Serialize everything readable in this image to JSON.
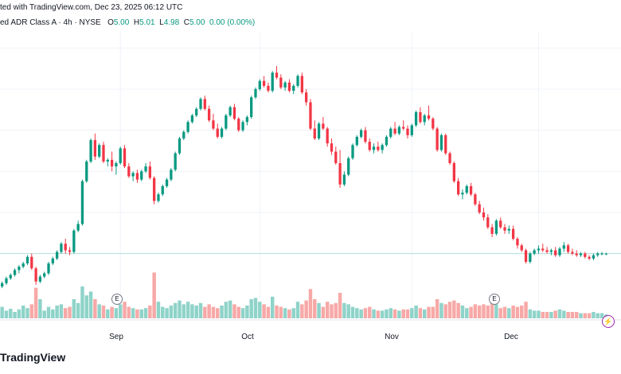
{
  "header": {
    "published": "ted with TradingView.com, Dec 23, 2025 06:12 UTC",
    "symbol": "ed ADR Class A · 4h · NYSE",
    "o_label": "O",
    "o_value": "5.00",
    "h_label": "H",
    "h_value": "5.01",
    "l_label": "L",
    "l_value": "4.98",
    "c_label": "C",
    "c_value": "5.00",
    "change": "0.00 (0.00%)"
  },
  "colors": {
    "up": "#089981",
    "down": "#f23645",
    "vol_up": "#8fd3c9",
    "vol_down": "#f7a9a7",
    "grid": "#f0f3fa",
    "last_price_line": "#b2dfdb"
  },
  "brand": "TradingView",
  "event_badges": {
    "sep": "E",
    "dec": "E"
  },
  "flash_icon": "lightning-icon",
  "chart_data": {
    "type": "candlestick",
    "timeframe": "4h",
    "exchange": "NYSE",
    "x_labels": [
      "Sep",
      "Oct",
      "Nov",
      "Dec"
    ],
    "x_label_candle_index": [
      28,
      61,
      97,
      127
    ],
    "last_price": 5.0,
    "ylim": [
      4.6,
      7.6
    ],
    "price_grid": [
      5.0,
      5.5,
      6.0,
      6.5,
      7.0,
      7.5
    ],
    "candles": [
      [
        4.6,
        4.66,
        4.58,
        4.64
      ],
      [
        4.64,
        4.72,
        4.62,
        4.7
      ],
      [
        4.7,
        4.76,
        4.68,
        4.74
      ],
      [
        4.74,
        4.82,
        4.72,
        4.8
      ],
      [
        4.8,
        4.86,
        4.76,
        4.84
      ],
      [
        4.84,
        4.9,
        4.82,
        4.88
      ],
      [
        4.88,
        4.98,
        4.86,
        4.96
      ],
      [
        4.96,
        5.0,
        4.8,
        4.82
      ],
      [
        4.82,
        4.84,
        4.62,
        4.66
      ],
      [
        4.66,
        4.74,
        4.64,
        4.72
      ],
      [
        4.72,
        4.78,
        4.7,
        4.76
      ],
      [
        4.76,
        4.9,
        4.74,
        4.88
      ],
      [
        4.88,
        4.96,
        4.86,
        4.94
      ],
      [
        4.94,
        5.04,
        4.92,
        5.02
      ],
      [
        5.02,
        5.14,
        5.0,
        5.12
      ],
      [
        5.12,
        5.18,
        5.0,
        5.04
      ],
      [
        5.04,
        5.08,
        4.98,
        5.02
      ],
      [
        5.02,
        5.3,
        5.0,
        5.28
      ],
      [
        5.28,
        5.4,
        5.26,
        5.36
      ],
      [
        5.36,
        5.9,
        5.34,
        5.88
      ],
      [
        5.88,
        6.14,
        5.86,
        6.12
      ],
      [
        6.12,
        6.4,
        6.1,
        6.38
      ],
      [
        6.38,
        6.46,
        6.14,
        6.18
      ],
      [
        6.18,
        6.34,
        6.16,
        6.32
      ],
      [
        6.32,
        6.36,
        6.1,
        6.12
      ],
      [
        6.12,
        6.16,
        6.06,
        6.14
      ],
      [
        6.14,
        6.24,
        6.0,
        6.06
      ],
      [
        6.06,
        6.12,
        5.96,
        6.1
      ],
      [
        6.1,
        6.3,
        6.08,
        6.28
      ],
      [
        6.28,
        6.32,
        6.04,
        6.06
      ],
      [
        6.06,
        6.1,
        5.92,
        5.94
      ],
      [
        5.94,
        6.0,
        5.88,
        5.98
      ],
      [
        5.98,
        6.02,
        5.86,
        5.9
      ],
      [
        5.9,
        6.02,
        5.88,
        6.0
      ],
      [
        6.0,
        6.1,
        5.98,
        6.06
      ],
      [
        6.06,
        6.12,
        5.9,
        5.92
      ],
      [
        5.92,
        5.94,
        5.6,
        5.64
      ],
      [
        5.64,
        5.74,
        5.62,
        5.72
      ],
      [
        5.72,
        5.84,
        5.7,
        5.82
      ],
      [
        5.82,
        5.92,
        5.8,
        5.9
      ],
      [
        5.9,
        6.04,
        5.88,
        6.02
      ],
      [
        6.02,
        6.24,
        6.0,
        6.22
      ],
      [
        6.22,
        6.42,
        6.2,
        6.4
      ],
      [
        6.4,
        6.5,
        6.38,
        6.48
      ],
      [
        6.48,
        6.62,
        6.46,
        6.6
      ],
      [
        6.6,
        6.7,
        6.58,
        6.68
      ],
      [
        6.68,
        6.78,
        6.66,
        6.76
      ],
      [
        6.76,
        6.9,
        6.74,
        6.88
      ],
      [
        6.88,
        6.92,
        6.74,
        6.76
      ],
      [
        6.76,
        6.8,
        6.6,
        6.62
      ],
      [
        6.62,
        6.7,
        6.5,
        6.52
      ],
      [
        6.52,
        6.58,
        6.4,
        6.42
      ],
      [
        6.42,
        6.54,
        6.4,
        6.52
      ],
      [
        6.52,
        6.7,
        6.5,
        6.68
      ],
      [
        6.68,
        6.8,
        6.66,
        6.78
      ],
      [
        6.78,
        6.82,
        6.62,
        6.64
      ],
      [
        6.64,
        6.66,
        6.48,
        6.5
      ],
      [
        6.5,
        6.62,
        6.48,
        6.6
      ],
      [
        6.6,
        6.68,
        6.56,
        6.66
      ],
      [
        6.66,
        6.92,
        6.64,
        6.9
      ],
      [
        6.9,
        7.02,
        6.88,
        7.0
      ],
      [
        7.0,
        7.12,
        6.98,
        7.1
      ],
      [
        7.1,
        7.16,
        7.02,
        7.04
      ],
      [
        7.04,
        7.08,
        6.96,
        6.98
      ],
      [
        6.98,
        7.22,
        6.96,
        7.2
      ],
      [
        7.2,
        7.28,
        7.12,
        7.14
      ],
      [
        7.14,
        7.18,
        7.0,
        7.02
      ],
      [
        7.02,
        7.1,
        6.98,
        7.08
      ],
      [
        7.08,
        7.12,
        6.96,
        6.98
      ],
      [
        6.98,
        7.06,
        6.94,
        7.04
      ],
      [
        7.04,
        7.18,
        7.02,
        7.16
      ],
      [
        7.16,
        7.2,
        6.94,
        6.96
      ],
      [
        6.96,
        7.0,
        6.8,
        6.84
      ],
      [
        6.84,
        6.88,
        6.5,
        6.52
      ],
      [
        6.52,
        6.62,
        6.38,
        6.4
      ],
      [
        6.4,
        6.6,
        6.38,
        6.58
      ],
      [
        6.58,
        6.66,
        6.5,
        6.52
      ],
      [
        6.52,
        6.54,
        6.3,
        6.34
      ],
      [
        6.34,
        6.4,
        6.2,
        6.24
      ],
      [
        6.24,
        6.3,
        6.08,
        6.1
      ],
      [
        6.1,
        6.26,
        5.8,
        5.84
      ],
      [
        5.84,
        6.0,
        5.82,
        5.96
      ],
      [
        5.96,
        6.18,
        5.94,
        6.16
      ],
      [
        6.16,
        6.34,
        6.14,
        6.32
      ],
      [
        6.32,
        6.44,
        6.3,
        6.42
      ],
      [
        6.42,
        6.52,
        6.4,
        6.5
      ],
      [
        6.5,
        6.54,
        6.34,
        6.36
      ],
      [
        6.36,
        6.4,
        6.24,
        6.26
      ],
      [
        6.26,
        6.34,
        6.22,
        6.3
      ],
      [
        6.3,
        6.36,
        6.24,
        6.26
      ],
      [
        6.26,
        6.34,
        6.22,
        6.32
      ],
      [
        6.32,
        6.44,
        6.3,
        6.42
      ],
      [
        6.42,
        6.54,
        6.4,
        6.52
      ],
      [
        6.52,
        6.6,
        6.44,
        6.46
      ],
      [
        6.46,
        6.56,
        6.44,
        6.54
      ],
      [
        6.54,
        6.62,
        6.5,
        6.52
      ],
      [
        6.52,
        6.56,
        6.4,
        6.44
      ],
      [
        6.44,
        6.58,
        6.42,
        6.56
      ],
      [
        6.56,
        6.74,
        6.54,
        6.72
      ],
      [
        6.72,
        6.78,
        6.58,
        6.6
      ],
      [
        6.6,
        6.7,
        6.56,
        6.68
      ],
      [
        6.68,
        6.8,
        6.62,
        6.64
      ],
      [
        6.64,
        6.66,
        6.5,
        6.52
      ],
      [
        6.52,
        6.54,
        6.24,
        6.26
      ],
      [
        6.26,
        6.46,
        6.24,
        6.44
      ],
      [
        6.44,
        6.46,
        6.2,
        6.22
      ],
      [
        6.22,
        6.24,
        6.08,
        6.1
      ],
      [
        6.1,
        6.12,
        5.86,
        5.88
      ],
      [
        5.88,
        5.92,
        5.7,
        5.72
      ],
      [
        5.72,
        5.78,
        5.66,
        5.74
      ],
      [
        5.74,
        5.84,
        5.72,
        5.82
      ],
      [
        5.82,
        5.86,
        5.7,
        5.72
      ],
      [
        5.72,
        5.74,
        5.58,
        5.6
      ],
      [
        5.6,
        5.64,
        5.48,
        5.5
      ],
      [
        5.5,
        5.56,
        5.4,
        5.44
      ],
      [
        5.44,
        5.48,
        5.3,
        5.32
      ],
      [
        5.32,
        5.36,
        5.2,
        5.24
      ],
      [
        5.24,
        5.42,
        5.22,
        5.4
      ],
      [
        5.4,
        5.44,
        5.3,
        5.32
      ],
      [
        5.32,
        5.36,
        5.24,
        5.28
      ],
      [
        5.28,
        5.34,
        5.24,
        5.3
      ],
      [
        5.3,
        5.34,
        5.16,
        5.18
      ],
      [
        5.18,
        5.2,
        5.06,
        5.1
      ],
      [
        5.1,
        5.12,
        5.02,
        5.04
      ],
      [
        5.04,
        5.06,
        4.88,
        4.9
      ],
      [
        4.9,
        5.02,
        4.88,
        5.0
      ],
      [
        5.0,
        5.06,
        4.98,
        5.04
      ],
      [
        5.04,
        5.1,
        5.0,
        5.06
      ],
      [
        5.06,
        5.12,
        5.02,
        5.04
      ],
      [
        5.04,
        5.08,
        5.0,
        5.02
      ],
      [
        5.02,
        5.06,
        4.98,
        5.04
      ],
      [
        5.04,
        5.08,
        4.96,
        4.98
      ],
      [
        4.98,
        5.08,
        4.96,
        5.06
      ],
      [
        5.06,
        5.14,
        5.02,
        5.1
      ],
      [
        5.1,
        5.12,
        5.0,
        5.02
      ],
      [
        5.02,
        5.06,
        4.98,
        5.0
      ],
      [
        5.0,
        5.04,
        4.96,
        4.98
      ],
      [
        4.98,
        5.02,
        4.96,
        5.0
      ],
      [
        5.0,
        5.02,
        4.94,
        4.96
      ],
      [
        4.96,
        4.98,
        4.92,
        4.94
      ],
      [
        4.94,
        5.0,
        4.92,
        4.98
      ],
      [
        4.98,
        5.02,
        4.96,
        5.0
      ],
      [
        5.0,
        5.02,
        4.98,
        5.0
      ],
      [
        5.0,
        5.01,
        4.98,
        5.0
      ]
    ],
    "volumes": [
      0.18,
      0.12,
      0.15,
      0.1,
      0.14,
      0.2,
      0.16,
      0.22,
      0.48,
      0.3,
      0.12,
      0.18,
      0.14,
      0.2,
      0.22,
      0.16,
      0.18,
      0.3,
      0.24,
      0.5,
      0.36,
      0.42,
      0.3,
      0.22,
      0.2,
      0.14,
      0.18,
      0.16,
      0.22,
      0.26,
      0.18,
      0.16,
      0.14,
      0.14,
      0.16,
      0.2,
      0.72,
      0.26,
      0.18,
      0.16,
      0.2,
      0.24,
      0.28,
      0.22,
      0.26,
      0.22,
      0.2,
      0.24,
      0.18,
      0.22,
      0.18,
      0.16,
      0.2,
      0.26,
      0.28,
      0.22,
      0.18,
      0.16,
      0.2,
      0.3,
      0.32,
      0.26,
      0.22,
      0.18,
      0.34,
      0.2,
      0.18,
      0.16,
      0.14,
      0.16,
      0.26,
      0.22,
      0.28,
      0.46,
      0.3,
      0.24,
      0.18,
      0.26,
      0.22,
      0.24,
      0.4,
      0.24,
      0.22,
      0.18,
      0.16,
      0.14,
      0.16,
      0.18,
      0.14,
      0.12,
      0.12,
      0.14,
      0.16,
      0.14,
      0.12,
      0.14,
      0.14,
      0.16,
      0.2,
      0.16,
      0.14,
      0.18,
      0.18,
      0.3,
      0.24,
      0.22,
      0.26,
      0.28,
      0.24,
      0.2,
      0.16,
      0.18,
      0.22,
      0.2,
      0.22,
      0.2,
      0.24,
      0.22,
      0.16,
      0.18,
      0.16,
      0.2,
      0.18,
      0.2,
      0.26,
      0.14,
      0.12,
      0.12,
      0.1,
      0.1,
      0.1,
      0.12,
      0.14,
      0.12,
      0.1,
      0.1,
      0.1,
      0.08,
      0.08,
      0.08,
      0.1,
      0.08,
      0.08,
      0.06
    ]
  }
}
